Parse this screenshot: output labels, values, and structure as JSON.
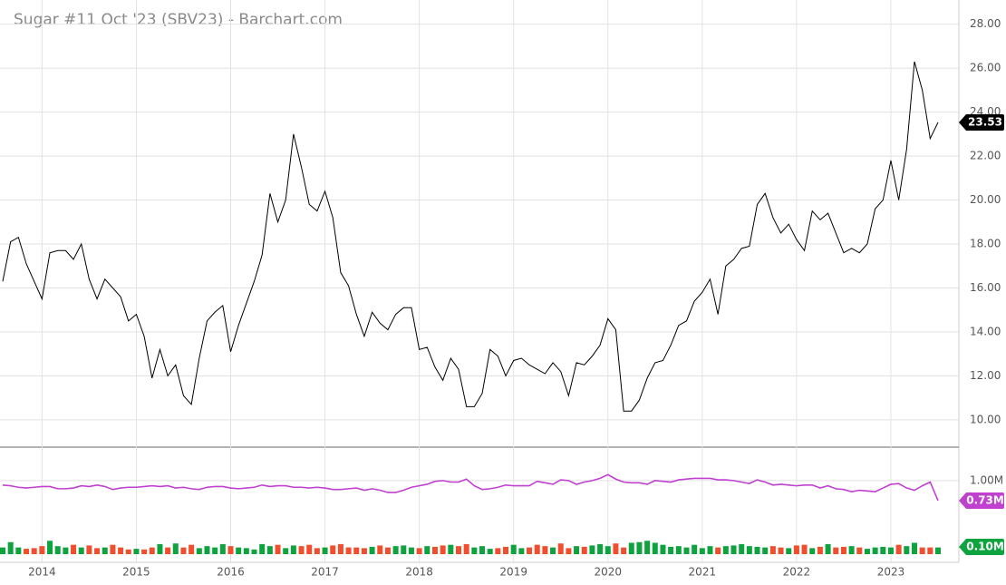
{
  "chart_data": {
    "type": "line",
    "title": "Sugar #11 Oct '23 (SBV23) - Barchart.com",
    "categories": [
      null,
      null,
      null,
      null,
      null,
      "2014",
      null,
      null,
      null,
      null,
      null,
      null,
      null,
      null,
      null,
      null,
      null,
      "2015",
      null,
      null,
      null,
      null,
      null,
      null,
      null,
      null,
      null,
      null,
      null,
      "2016",
      null,
      null,
      null,
      null,
      null,
      null,
      null,
      null,
      null,
      null,
      null,
      "2017",
      null,
      null,
      null,
      null,
      null,
      null,
      null,
      null,
      null,
      null,
      null,
      "2018",
      null,
      null,
      null,
      null,
      null,
      null,
      null,
      null,
      null,
      null,
      null,
      "2019",
      null,
      null,
      null,
      null,
      null,
      null,
      null,
      null,
      null,
      null,
      null,
      "2020",
      null,
      null,
      null,
      null,
      null,
      null,
      null,
      null,
      null,
      null,
      null,
      "2021",
      null,
      null,
      null,
      null,
      null,
      null,
      null,
      null,
      null,
      null,
      null,
      "2022",
      null,
      null,
      null,
      null,
      null,
      null,
      null,
      null,
      null,
      null,
      null,
      "2023",
      null,
      null,
      null,
      null,
      null,
      null
    ],
    "ylim": [
      8.8,
      29.1
    ],
    "yticks": [
      {
        "value": 28,
        "label": "28.00"
      },
      {
        "value": 26,
        "label": "26.00"
      },
      {
        "value": 24,
        "label": "24.00"
      },
      {
        "value": 22,
        "label": "22.00"
      },
      {
        "value": 20,
        "label": "20.00"
      },
      {
        "value": 18,
        "label": "18.00"
      },
      {
        "value": 16,
        "label": "16.00"
      },
      {
        "value": 14,
        "label": "14.00"
      },
      {
        "value": 12,
        "label": "12.00"
      },
      {
        "value": 10,
        "label": "10.00"
      }
    ],
    "y2lim": [
      -0.1,
      1.45
    ],
    "y2ticks": [
      {
        "value": 1.0,
        "label": "1.00M"
      }
    ],
    "y3lim": [
      0,
      1.6
    ],
    "grid": true,
    "series": [
      {
        "name": "Price",
        "color": "#000000",
        "values": [
          16.3,
          18.1,
          18.3,
          17.1,
          16.3,
          15.5,
          17.6,
          17.7,
          17.7,
          17.3,
          18.0,
          16.4,
          15.5,
          16.4,
          16.0,
          15.6,
          14.5,
          14.8,
          13.8,
          11.9,
          13.2,
          12.0,
          12.5,
          11.1,
          10.7,
          12.8,
          14.5,
          14.9,
          15.2,
          13.1,
          14.3,
          15.3,
          16.3,
          17.5,
          20.3,
          19.0,
          20.0,
          23.0,
          21.5,
          19.8,
          19.5,
          20.4,
          19.2,
          16.7,
          16.1,
          14.8,
          13.8,
          14.9,
          14.4,
          14.1,
          14.8,
          15.1,
          15.1,
          13.2,
          13.3,
          12.4,
          11.8,
          12.8,
          12.3,
          10.6,
          10.6,
          11.2,
          13.2,
          12.9,
          12.0,
          12.7,
          12.8,
          12.5,
          12.3,
          12.1,
          12.6,
          12.2,
          11.1,
          12.6,
          12.5,
          12.9,
          13.4,
          14.6,
          14.1,
          10.4,
          10.4,
          10.9,
          11.9,
          12.6,
          12.7,
          13.4,
          14.3,
          14.5,
          15.4,
          15.8,
          16.4,
          14.8,
          17.0,
          17.3,
          17.8,
          17.9,
          19.8,
          20.3,
          19.2,
          18.5,
          18.9,
          18.2,
          17.7,
          19.5,
          19.1,
          19.4,
          18.5,
          17.6,
          17.8,
          17.6,
          18.0,
          19.6,
          20.0,
          21.8,
          20.0,
          22.3,
          26.3,
          25.0,
          22.8,
          23.53
        ]
      },
      {
        "name": "Open Interest",
        "color": "#c040d0",
        "axis": "y2",
        "last_label": "0.73M",
        "values": [
          0.94,
          0.93,
          0.91,
          0.9,
          0.91,
          0.92,
          0.92,
          0.89,
          0.89,
          0.9,
          0.93,
          0.92,
          0.94,
          0.92,
          0.88,
          0.9,
          0.91,
          0.91,
          0.92,
          0.93,
          0.92,
          0.93,
          0.9,
          0.91,
          0.89,
          0.88,
          0.91,
          0.92,
          0.92,
          0.9,
          0.89,
          0.9,
          0.91,
          0.94,
          0.92,
          0.93,
          0.93,
          0.91,
          0.91,
          0.9,
          0.91,
          0.9,
          0.88,
          0.88,
          0.89,
          0.9,
          0.87,
          0.89,
          0.87,
          0.84,
          0.84,
          0.87,
          0.91,
          0.93,
          0.95,
          0.99,
          1.0,
          0.98,
          0.98,
          1.02,
          0.93,
          0.88,
          0.89,
          0.91,
          0.94,
          0.93,
          0.93,
          0.93,
          0.99,
          0.97,
          0.95,
          1.01,
          1.0,
          0.95,
          0.98,
          1.0,
          1.03,
          1.08,
          1.02,
          0.98,
          0.97,
          0.97,
          0.95,
          1.0,
          0.99,
          0.98,
          1.01,
          1.02,
          1.03,
          1.03,
          1.03,
          1.01,
          1.01,
          1.0,
          0.98,
          0.96,
          1.01,
          0.98,
          0.94,
          0.95,
          0.94,
          0.93,
          0.94,
          0.94,
          0.9,
          0.93,
          0.89,
          0.88,
          0.85,
          0.87,
          0.86,
          0.85,
          0.9,
          0.95,
          0.96,
          0.9,
          0.87,
          0.93,
          0.98,
          0.73
        ]
      },
      {
        "name": "Volume",
        "type": "bar",
        "axis": "y3",
        "up_color": "#0fa33f",
        "down_color": "#f04f2f",
        "last_label": "0.10M",
        "values": [
          0.1,
          0.18,
          0.1,
          0.08,
          0.09,
          0.12,
          0.2,
          0.12,
          0.1,
          0.14,
          0.1,
          0.13,
          0.09,
          0.1,
          0.14,
          0.1,
          0.07,
          0.08,
          0.07,
          0.1,
          0.15,
          0.1,
          0.16,
          0.1,
          0.14,
          0.09,
          0.12,
          0.1,
          0.15,
          0.12,
          0.1,
          0.09,
          0.07,
          0.15,
          0.12,
          0.14,
          0.09,
          0.13,
          0.12,
          0.14,
          0.09,
          0.1,
          0.13,
          0.15,
          0.1,
          0.1,
          0.09,
          0.11,
          0.13,
          0.1,
          0.12,
          0.13,
          0.1,
          0.09,
          0.12,
          0.11,
          0.13,
          0.14,
          0.12,
          0.15,
          0.1,
          0.12,
          0.08,
          0.09,
          0.11,
          0.14,
          0.09,
          0.1,
          0.14,
          0.12,
          0.1,
          0.16,
          0.09,
          0.12,
          0.11,
          0.13,
          0.15,
          0.12,
          0.16,
          0.1,
          0.17,
          0.18,
          0.2,
          0.17,
          0.14,
          0.11,
          0.12,
          0.1,
          0.14,
          0.09,
          0.12,
          0.1,
          0.12,
          0.13,
          0.15,
          0.12,
          0.11,
          0.1,
          0.12,
          0.1,
          0.09,
          0.13,
          0.14,
          0.09,
          0.11,
          0.15,
          0.1,
          0.11,
          0.12,
          0.1,
          0.08,
          0.1,
          0.11,
          0.1,
          0.14,
          0.12,
          0.17,
          0.1,
          0.1,
          0.1
        ]
      }
    ]
  }
}
